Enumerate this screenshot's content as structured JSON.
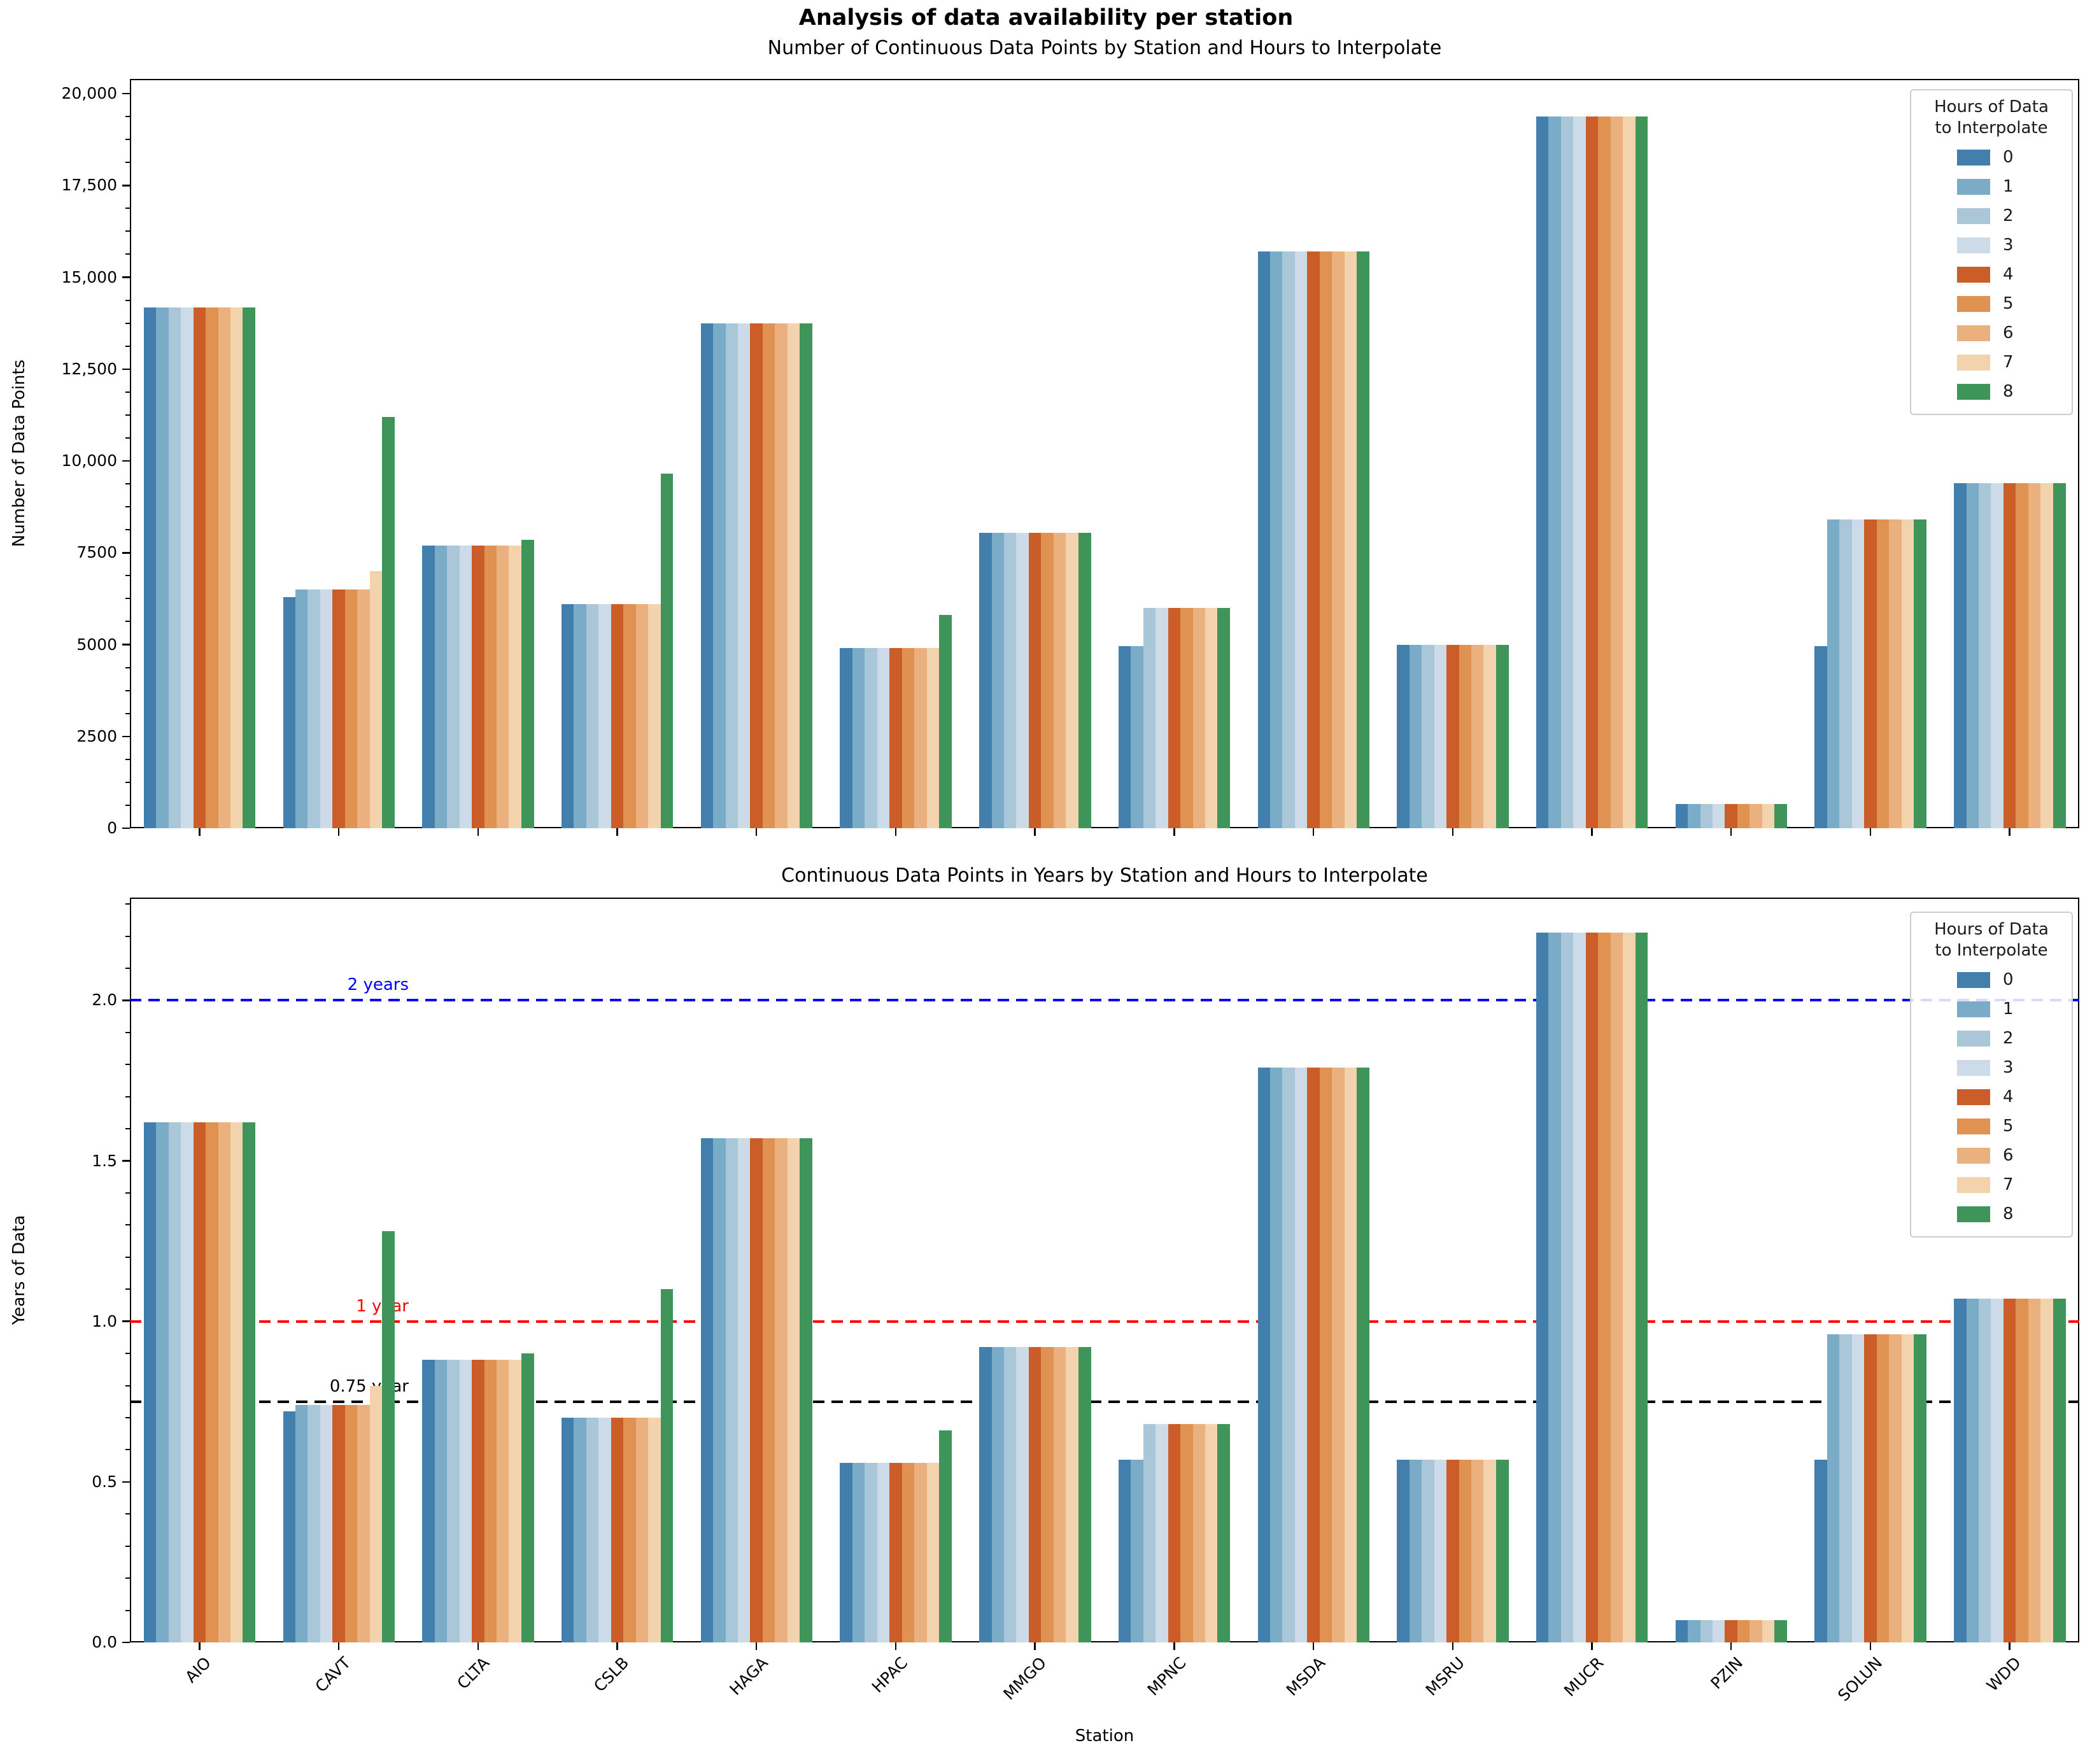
{
  "figure": {
    "title": "Analysis of data availability per station"
  },
  "legend": {
    "title_line1": "Hours of Data",
    "title_line2": "to Interpolate",
    "entries": [
      {
        "label": "0",
        "color": "#437fac"
      },
      {
        "label": "1",
        "color": "#7aabc7"
      },
      {
        "label": "2",
        "color": "#a9c7d8"
      },
      {
        "label": "3",
        "color": "#cddbe8"
      },
      {
        "label": "4",
        "color": "#cb5d28"
      },
      {
        "label": "5",
        "color": "#e09252"
      },
      {
        "label": "6",
        "color": "#eab17e"
      },
      {
        "label": "7",
        "color": "#f2d3ae"
      },
      {
        "label": "8",
        "color": "#3f9559"
      }
    ]
  },
  "chart_data": [
    {
      "type": "bar",
      "title": "Number of Continuous Data Points by Station and Hours to Interpolate",
      "xlabel": "",
      "ylabel": "Number of Data Points",
      "categories": [
        "AIO",
        "CAVT",
        "CLTA",
        "CSLB",
        "HAGA",
        "HPAC",
        "MMGO",
        "MPNC",
        "MSDA",
        "MSRU",
        "MUCR",
        "PZIN",
        "SOLUN",
        "WDD"
      ],
      "ylim": [
        0,
        20400
      ],
      "yticks": [
        0,
        2500,
        5000,
        7500,
        10000,
        12500,
        15000,
        17500,
        20000
      ],
      "ytick_labels": [
        "0",
        "2500",
        "5000",
        "7500",
        "10,000",
        "12,500",
        "15,000",
        "17,500",
        "20,000"
      ],
      "minor_tick_step": 625,
      "grid": false,
      "legend_position": "upper right",
      "legend_title": "Hours of Data to Interpolate",
      "series": [
        {
          "name": "0",
          "color": "#437fac",
          "values": [
            14170,
            6300,
            7700,
            6100,
            13750,
            4900,
            8050,
            4950,
            15700,
            5000,
            19380,
            650,
            4950,
            9400
          ]
        },
        {
          "name": "1",
          "color": "#7aabc7",
          "values": [
            14170,
            6500,
            7700,
            6100,
            13750,
            4900,
            8050,
            4950,
            15700,
            5000,
            19380,
            650,
            8400,
            9400
          ]
        },
        {
          "name": "2",
          "color": "#a9c7d8",
          "values": [
            14170,
            6500,
            7700,
            6100,
            13750,
            4900,
            8050,
            6000,
            15700,
            5000,
            19380,
            650,
            8400,
            9400
          ]
        },
        {
          "name": "3",
          "color": "#cddbe8",
          "values": [
            14170,
            6500,
            7700,
            6100,
            13750,
            4900,
            8050,
            6000,
            15700,
            5000,
            19380,
            650,
            8400,
            9400
          ]
        },
        {
          "name": "4",
          "color": "#cb5d28",
          "values": [
            14170,
            6500,
            7700,
            6100,
            13750,
            4900,
            8050,
            6000,
            15700,
            5000,
            19380,
            650,
            8400,
            9400
          ]
        },
        {
          "name": "5",
          "color": "#e09252",
          "values": [
            14170,
            6500,
            7700,
            6100,
            13750,
            4900,
            8050,
            6000,
            15700,
            5000,
            19380,
            650,
            8400,
            9400
          ]
        },
        {
          "name": "6",
          "color": "#eab17e",
          "values": [
            14170,
            6500,
            7700,
            6100,
            13750,
            4900,
            8050,
            6000,
            15700,
            5000,
            19380,
            650,
            8400,
            9400
          ]
        },
        {
          "name": "7",
          "color": "#f2d3ae",
          "values": [
            14170,
            7000,
            7700,
            6100,
            13750,
            4900,
            8050,
            6000,
            15700,
            5000,
            19380,
            650,
            8400,
            9400
          ]
        },
        {
          "name": "8",
          "color": "#3f9559",
          "values": [
            14170,
            11200,
            7850,
            9650,
            13750,
            5800,
            8050,
            6000,
            15700,
            5000,
            19380,
            650,
            8400,
            9400
          ]
        }
      ]
    },
    {
      "type": "bar",
      "title": "Continuous Data Points in Years by Station and Hours to Interpolate",
      "xlabel": "Station",
      "ylabel": "Years of Data",
      "categories": [
        "AIO",
        "CAVT",
        "CLTA",
        "CSLB",
        "HAGA",
        "HPAC",
        "MMGO",
        "MPNC",
        "MSDA",
        "MSRU",
        "MUCR",
        "PZIN",
        "SOLUN",
        "WDD"
      ],
      "ylim": [
        0,
        2.32
      ],
      "yticks": [
        0,
        0.5,
        1.0,
        1.5,
        2.0
      ],
      "ytick_labels": [
        "0.0",
        "0.5",
        "1.0",
        "1.5",
        "2.0"
      ],
      "minor_tick_step": 0.1,
      "grid": false,
      "legend_position": "upper right",
      "legend_title": "Hours of Data to Interpolate",
      "reference_lines": [
        {
          "value": 2.0,
          "label": "2 years",
          "color": "#0000ff"
        },
        {
          "value": 1.0,
          "label": "1 year",
          "color": "#ff0000"
        },
        {
          "value": 0.75,
          "label": "0.75 year",
          "color": "#000000"
        }
      ],
      "series": [
        {
          "name": "0",
          "color": "#437fac",
          "values": [
            1.62,
            0.72,
            0.88,
            0.7,
            1.57,
            0.56,
            0.92,
            0.57,
            1.79,
            0.57,
            2.21,
            0.07,
            0.57,
            1.07
          ]
        },
        {
          "name": "1",
          "color": "#7aabc7",
          "values": [
            1.62,
            0.74,
            0.88,
            0.7,
            1.57,
            0.56,
            0.92,
            0.57,
            1.79,
            0.57,
            2.21,
            0.07,
            0.96,
            1.07
          ]
        },
        {
          "name": "2",
          "color": "#a9c7d8",
          "values": [
            1.62,
            0.74,
            0.88,
            0.7,
            1.57,
            0.56,
            0.92,
            0.68,
            1.79,
            0.57,
            2.21,
            0.07,
            0.96,
            1.07
          ]
        },
        {
          "name": "3",
          "color": "#cddbe8",
          "values": [
            1.62,
            0.74,
            0.88,
            0.7,
            1.57,
            0.56,
            0.92,
            0.68,
            1.79,
            0.57,
            2.21,
            0.07,
            0.96,
            1.07
          ]
        },
        {
          "name": "4",
          "color": "#cb5d28",
          "values": [
            1.62,
            0.74,
            0.88,
            0.7,
            1.57,
            0.56,
            0.92,
            0.68,
            1.79,
            0.57,
            2.21,
            0.07,
            0.96,
            1.07
          ]
        },
        {
          "name": "5",
          "color": "#e09252",
          "values": [
            1.62,
            0.74,
            0.88,
            0.7,
            1.57,
            0.56,
            0.92,
            0.68,
            1.79,
            0.57,
            2.21,
            0.07,
            0.96,
            1.07
          ]
        },
        {
          "name": "6",
          "color": "#eab17e",
          "values": [
            1.62,
            0.74,
            0.88,
            0.7,
            1.57,
            0.56,
            0.92,
            0.68,
            1.79,
            0.57,
            2.21,
            0.07,
            0.96,
            1.07
          ]
        },
        {
          "name": "7",
          "color": "#f2d3ae",
          "values": [
            1.62,
            0.8,
            0.88,
            0.7,
            1.57,
            0.56,
            0.92,
            0.68,
            1.79,
            0.57,
            2.21,
            0.07,
            0.96,
            1.07
          ]
        },
        {
          "name": "8",
          "color": "#3f9559",
          "values": [
            1.62,
            1.28,
            0.9,
            1.1,
            1.57,
            0.66,
            0.92,
            0.68,
            1.79,
            0.57,
            2.21,
            0.07,
            0.96,
            1.07
          ]
        }
      ]
    }
  ]
}
